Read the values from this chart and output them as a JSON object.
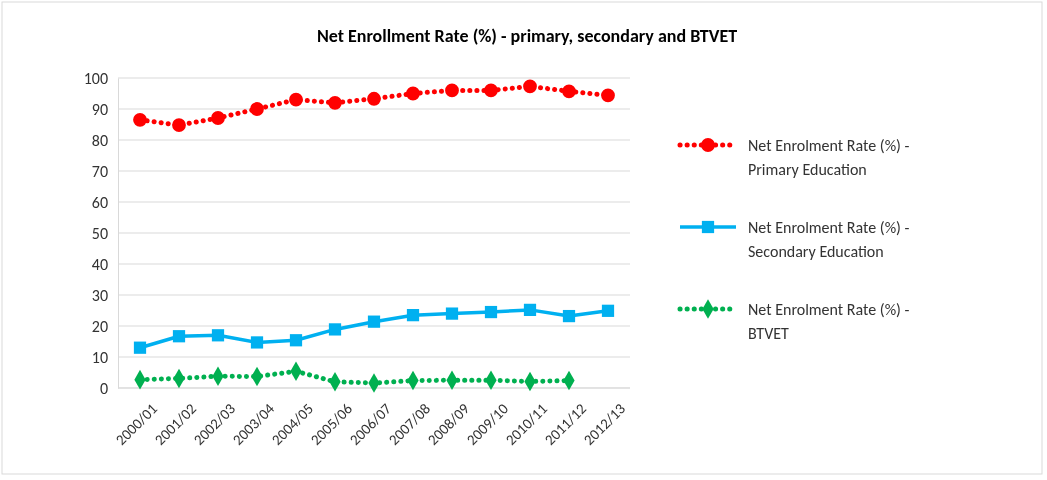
{
  "chart_data": {
    "type": "line",
    "title": "Net Enrollment Rate (%) - primary, secondary and BTVET",
    "categories": [
      "2000/01",
      "2001/02",
      "2002/03",
      "2003/04",
      "2004/05",
      "2005/06",
      "2006/07",
      "2007/08",
      "2008/09",
      "2009/10",
      "2010/11",
      "2011/12",
      "2012/13"
    ],
    "series": [
      {
        "name": "Net Enrolment Rate (%) - Primary Education",
        "color": "#ff0000",
        "marker": "circle",
        "line_style": "dotted",
        "values": [
          86.5,
          84.8,
          87.1,
          90,
          93,
          92,
          93.3,
          95,
          96,
          96,
          97.3,
          95.7,
          94.4
        ]
      },
      {
        "name": "Net Enrolment Rate (%) - Secondary Education",
        "color": "#00b0f0",
        "marker": "square",
        "line_style": "solid",
        "values": [
          13,
          16.7,
          17,
          14.7,
          15.4,
          18.9,
          21.4,
          23.5,
          24,
          24.5,
          25.2,
          23.2,
          24.9
        ]
      },
      {
        "name": "Net Enrolment Rate (%) - BTVET",
        "color": "#00b050",
        "marker": "diamond",
        "line_style": "dotted",
        "values": [
          2.7,
          3.1,
          3.8,
          3.7,
          5.4,
          2,
          1.6,
          2.4,
          2.5,
          2.5,
          2.1,
          2.4,
          null
        ]
      }
    ],
    "ylim": [
      0,
      100
    ],
    "yticks": [
      0,
      10,
      20,
      30,
      40,
      50,
      60,
      70,
      80,
      90,
      100
    ],
    "grid": "y",
    "legend": "right"
  }
}
